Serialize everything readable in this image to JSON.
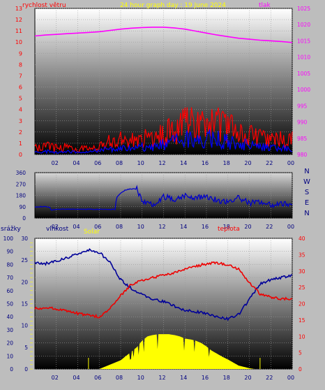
{
  "chart_data": [
    {
      "type": "line",
      "title": "24 hour graph day : 19 June 2024",
      "left_axis_label": "rychlost větru",
      "right_axis_label": "tlak",
      "left_ticks": [
        "0",
        "1",
        "2",
        "3",
        "4",
        "5",
        "6",
        "7",
        "8",
        "9",
        "10",
        "11",
        "12",
        "13"
      ],
      "right_ticks": [
        "980",
        "985",
        "990",
        "995",
        "1000",
        "1005",
        "1010",
        "1015",
        "1020",
        "1025"
      ],
      "x_ticks": [
        "02",
        "04",
        "06",
        "08",
        "10",
        "12",
        "14",
        "16",
        "18",
        "20",
        "22",
        "00"
      ],
      "ylim_left": [
        0,
        13
      ],
      "ylim_right": [
        980,
        1025
      ],
      "xlim": [
        0,
        24
      ],
      "grid": true,
      "series": [
        {
          "axis": "right",
          "color": "#ff00ff",
          "x": [
            0,
            1,
            2,
            3,
            4,
            5,
            6,
            7,
            8,
            9,
            10,
            11,
            12,
            13,
            14,
            15,
            16,
            17,
            18,
            19,
            20,
            21,
            22,
            23,
            24
          ],
          "y": [
            1016.5,
            1016.8,
            1017,
            1017.2,
            1017.4,
            1017.6,
            1017.8,
            1018.2,
            1018.6,
            1018.9,
            1019.1,
            1019.2,
            1019.2,
            1019.0,
            1018.6,
            1018.0,
            1017.4,
            1016.8,
            1016.3,
            1015.8,
            1015.5,
            1015.2,
            1015.0,
            1014.8,
            1014.5
          ]
        },
        {
          "axis": "left",
          "color": "#ff0000",
          "x": [
            0,
            1,
            2,
            3,
            4,
            5,
            6,
            7,
            8,
            9,
            10,
            11,
            12,
            13,
            14,
            15,
            16,
            17,
            18,
            19,
            20,
            21,
            22,
            23,
            24
          ],
          "y": [
            0.6,
            0.8,
            0.6,
            0.7,
            0.5,
            0.6,
            0.9,
            1.2,
            1.4,
            1.4,
            1.5,
            1.7,
            2.0,
            2.4,
            2.8,
            3.0,
            3.1,
            2.9,
            2.5,
            2.1,
            1.9,
            1.6,
            1.5,
            1.4,
            1.4
          ]
        },
        {
          "axis": "left",
          "color": "#0000ff",
          "x": [
            0,
            1,
            2,
            3,
            4,
            5,
            6,
            7,
            8,
            9,
            10,
            11,
            12,
            13,
            14,
            15,
            16,
            17,
            18,
            19,
            20,
            21,
            22,
            23,
            24
          ],
          "y": [
            0.2,
            0.3,
            0.2,
            0.3,
            0.2,
            0.2,
            0.4,
            0.5,
            0.6,
            0.6,
            0.7,
            0.8,
            1.0,
            1.2,
            1.4,
            1.6,
            1.6,
            1.5,
            1.2,
            1.0,
            0.9,
            0.7,
            0.6,
            0.6,
            0.5
          ]
        }
      ]
    },
    {
      "type": "line",
      "right_axis_label": "N W S E N",
      "left_ticks": [
        "0",
        "90",
        "180",
        "270",
        "360"
      ],
      "x_ticks": [
        "02",
        "04",
        "06",
        "08",
        "10",
        "12",
        "14",
        "16",
        "18",
        "20",
        "22",
        "00"
      ],
      "ylim": [
        0,
        360
      ],
      "xlim": [
        0,
        24
      ],
      "grid": true,
      "series": [
        {
          "color": "#0000cc",
          "x": [
            0,
            0.5,
            1,
            1.4,
            1.5,
            2,
            4,
            6,
            7.5,
            7.6,
            8,
            8.5,
            9,
            9.5,
            10,
            10.5,
            11,
            12,
            13,
            14,
            15,
            16,
            17,
            18,
            19,
            20,
            21,
            22,
            23,
            24
          ],
          "y": [
            90,
            90,
            90,
            85,
            60,
            70,
            70,
            70,
            70,
            160,
            200,
            225,
            230,
            230,
            140,
            120,
            110,
            170,
            150,
            180,
            160,
            175,
            140,
            130,
            160,
            120,
            130,
            105,
            110,
            115
          ]
        }
      ]
    },
    {
      "type": "line",
      "left_axis_label": "srážky",
      "left2_axis_label": "vlhkost",
      "solar_label": "Solar",
      "right_axis_label": "teplota",
      "rain_ticks": [
        "0",
        "10",
        "20",
        "30",
        "40",
        "50",
        "60",
        "70",
        "80",
        "90",
        "100"
      ],
      "humidity_ticks": [
        "0",
        "5",
        "10",
        "15",
        "20",
        "25",
        "30"
      ],
      "temp_ticks": [
        "0",
        "5",
        "10",
        "15",
        "20",
        "25",
        "30",
        "35",
        "40"
      ],
      "x_ticks": [
        "02",
        "04",
        "06",
        "08",
        "10",
        "12",
        "14",
        "16",
        "18",
        "20",
        "22",
        "00"
      ],
      "ylim_humidity": [
        0,
        30
      ],
      "ylim_temp": [
        0,
        40
      ],
      "xlim": [
        0,
        24
      ],
      "grid": true,
      "series": [
        {
          "name": "vlhkost",
          "axis": "humidity",
          "color": "#000099",
          "x": [
            0,
            1,
            2,
            3,
            4,
            5,
            6,
            7,
            8,
            9,
            10,
            11,
            12,
            13,
            14,
            15,
            16,
            17,
            18,
            19,
            20,
            21,
            22,
            23,
            24
          ],
          "y": [
            24.5,
            24.2,
            24.8,
            25.5,
            26.5,
            27.3,
            26.8,
            24.5,
            20.5,
            18.5,
            17.0,
            16.0,
            15.5,
            14.5,
            13.5,
            13.2,
            12.8,
            12.0,
            11.5,
            12.5,
            16.0,
            19.5,
            20.5,
            21.0,
            21.5
          ]
        },
        {
          "name": "teplota",
          "axis": "temp",
          "color": "#ee0000",
          "x": [
            0,
            1,
            2,
            3,
            4,
            5,
            6,
            7,
            8,
            9,
            10,
            11,
            12,
            13,
            14,
            15,
            16,
            17,
            18,
            19,
            20,
            21,
            22,
            23,
            24
          ],
          "y": [
            18.5,
            18.8,
            18.5,
            17.8,
            17.0,
            16.5,
            16.0,
            18.5,
            22.5,
            26.0,
            27.0,
            28.0,
            28.8,
            29.5,
            30.5,
            31.5,
            32.2,
            32.5,
            32.0,
            30.5,
            26.5,
            23.0,
            22.0,
            21.5,
            21.5
          ]
        },
        {
          "name": "Solar",
          "axis": "humidity",
          "color": "#ffff00",
          "x": [
            0,
            4,
            5,
            5.6,
            6,
            6.5,
            7,
            7.5,
            8,
            8.5,
            9,
            9.5,
            10,
            10.5,
            11,
            11.5,
            12,
            12.5,
            13,
            13.5,
            14,
            14.5,
            15,
            15.5,
            16,
            16.5,
            17,
            17.5,
            18,
            18.5,
            19,
            19.5,
            20,
            20.5,
            21,
            24
          ],
          "y": [
            0,
            0,
            0,
            0,
            0,
            0.5,
            1.0,
            1.5,
            2.0,
            3.0,
            4.0,
            5.0,
            6.5,
            7.5,
            7.8,
            8.0,
            8.0,
            8.0,
            7.8,
            7.5,
            7.0,
            6.8,
            6.5,
            6.0,
            5.2,
            4.2,
            3.5,
            2.8,
            2.2,
            1.5,
            0.8,
            0.5,
            0.2,
            0,
            0,
            0
          ]
        }
      ]
    }
  ]
}
